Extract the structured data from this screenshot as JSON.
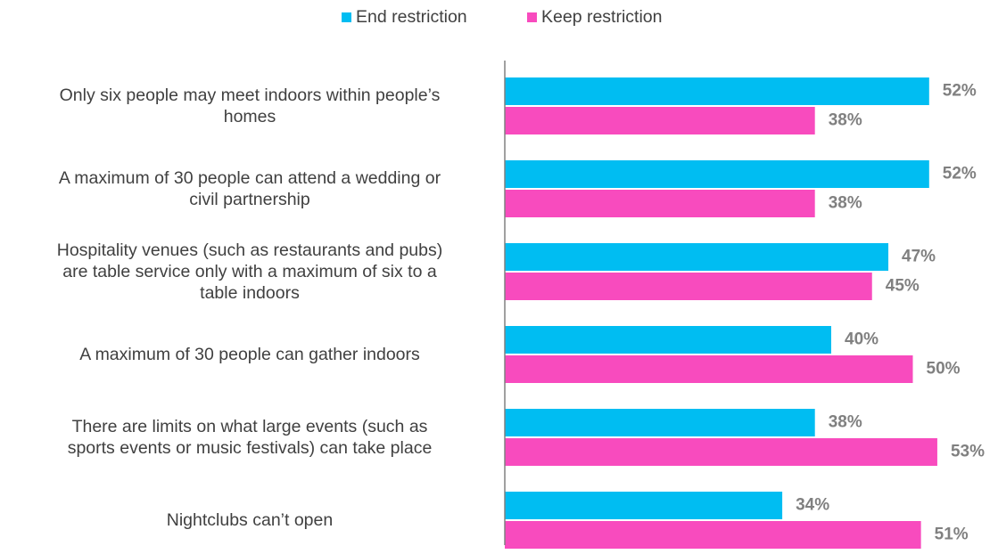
{
  "chart_data": {
    "type": "bar",
    "orientation": "horizontal",
    "categories": [
      "Only six people may meet indoors within people’s\nhomes",
      "A maximum of 30 people can attend a wedding or\ncivil partnership",
      "Hospitality venues (such as restaurants and pubs)\nare table service only with a maximum of six to a\ntable indoors",
      "A maximum of 30 people can gather indoors",
      "There are limits on what large events (such as\nsports events or music festivals) can take place",
      "Nightclubs can’t open"
    ],
    "series": [
      {
        "name": "End restriction",
        "color": "#00bdf2",
        "values": [
          52,
          52,
          47,
          40,
          38,
          34
        ],
        "value_labels": [
          "52%",
          "52%",
          "47%",
          "40%",
          "38%",
          "34%"
        ]
      },
      {
        "name": "Keep restriction",
        "color": "#f84bbe",
        "values": [
          38,
          38,
          45,
          50,
          53,
          51
        ],
        "value_labels": [
          "38%",
          "38%",
          "45%",
          "50%",
          "53%",
          "51%"
        ]
      }
    ],
    "legend": "top"
  }
}
